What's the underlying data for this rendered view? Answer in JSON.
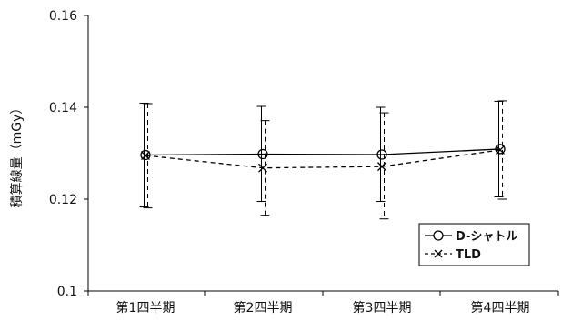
{
  "chart_data": {
    "type": "line",
    "categories": [
      "第1四半期",
      "第2四半期",
      "第3四半期",
      "第4四半期"
    ],
    "ylabel": "積算線量（mGy）",
    "ylim": [
      0.1,
      0.16
    ],
    "yticks": [
      "0.1",
      "0.12",
      "0.14",
      "0.16"
    ],
    "grid": false,
    "legend_position": "bottom-right",
    "series": [
      {
        "name": "D-シャトル",
        "marker": "circle",
        "line_style": "solid",
        "color": "#000000",
        "values": [
          0.1296,
          0.1298,
          0.1297,
          0.1309
        ],
        "error_low": [
          0.1183,
          0.1195,
          0.1195,
          0.1205
        ],
        "error_high": [
          0.1409,
          0.1402,
          0.14,
          0.1413
        ]
      },
      {
        "name": "TLD",
        "marker": "x",
        "line_style": "dashed",
        "color": "#000000",
        "values": [
          0.1295,
          0.1268,
          0.1271,
          0.1307
        ],
        "error_low": [
          0.1181,
          0.1165,
          0.1157,
          0.12
        ],
        "error_high": [
          0.1408,
          0.1371,
          0.1388,
          0.1414
        ]
      }
    ]
  }
}
